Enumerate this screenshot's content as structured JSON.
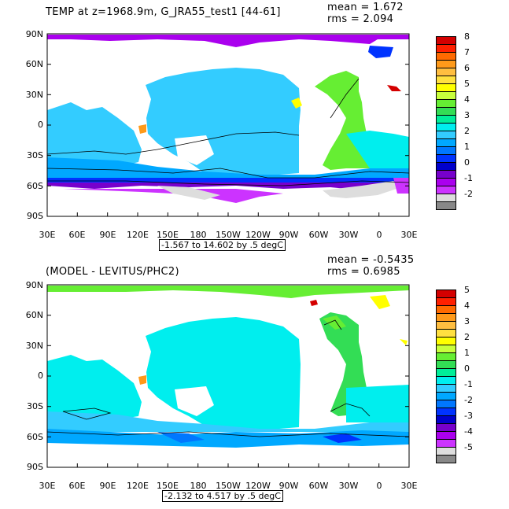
{
  "lat_ticks": [
    "90N",
    "60N",
    "30N",
    "0",
    "30S",
    "60S",
    "90S"
  ],
  "lon_ticks": [
    "30E",
    "60E",
    "90E",
    "120E",
    "150E",
    "180",
    "150W",
    "120W",
    "90W",
    "60W",
    "30W",
    "0",
    "30E"
  ],
  "top": {
    "title": "TEMP at z=1968.9m, G_JRA55_test1 [44-61]",
    "mean": "mean = 1.672",
    "rms": "rms = 2.094",
    "range": "-1.567 to 14.602 by .5 degC",
    "colorbar": {
      "labels": [
        "8",
        "7",
        "6",
        "5",
        "4",
        "3",
        "2",
        "1",
        "0",
        "-1",
        "-2"
      ],
      "colors": [
        "#d40000",
        "#ff2000",
        "#ff6a00",
        "#ff9a1a",
        "#ffbe40",
        "#ffe040",
        "#ffff00",
        "#c8ff3c",
        "#66ee33",
        "#33dd55",
        "#00ee99",
        "#00eeee",
        "#33ccff",
        "#00a8ff",
        "#0077ff",
        "#0033ff",
        "#0000cc",
        "#7700cc",
        "#aa00ee",
        "#cc33ff",
        "#dddddd",
        "#888888"
      ]
    }
  },
  "bottom": {
    "title": "(MODEL - LEVITUS/PHC2)",
    "mean": "mean = -0.5435",
    "rms": "rms = 0.6985",
    "range": "-2.132 to 4.517 by .5 degC",
    "colorbar": {
      "labels": [
        "5",
        "4",
        "3",
        "2",
        "1",
        "0",
        "-1",
        "-2",
        "-3",
        "-4",
        "-5"
      ],
      "colors": [
        "#d40000",
        "#ff2000",
        "#ff6a00",
        "#ff9a1a",
        "#ffbe40",
        "#ffe040",
        "#ffff00",
        "#c8ff3c",
        "#66ee33",
        "#33dd55",
        "#00ee99",
        "#00eeee",
        "#33ccff",
        "#00a8ff",
        "#0077ff",
        "#0033ff",
        "#0000cc",
        "#7700cc",
        "#aa00ee",
        "#cc33ff",
        "#dddddd",
        "#888888"
      ]
    }
  }
}
